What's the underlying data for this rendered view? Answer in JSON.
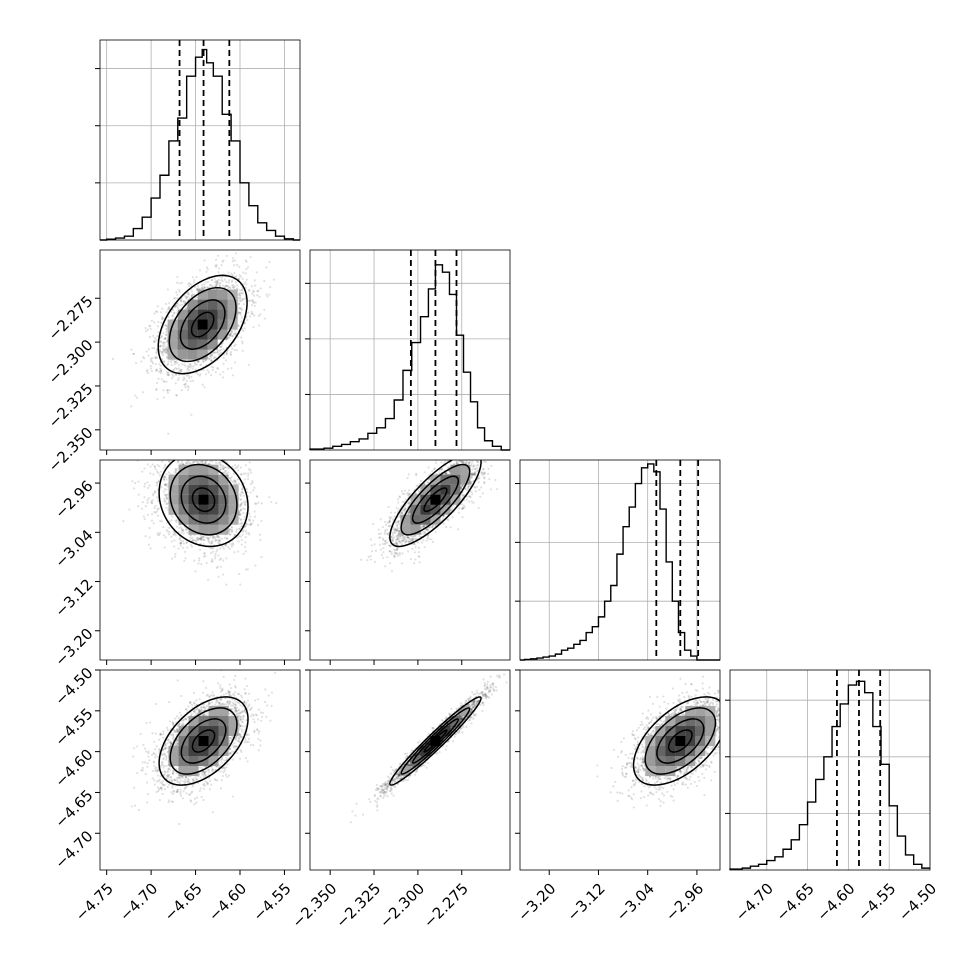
{
  "chart_data": {
    "type": "scatter",
    "subtype": "corner",
    "grid": true,
    "colors": {
      "frame": "#000000",
      "grid": "#b0b0b0",
      "points": "#000000"
    },
    "params": [
      {
        "range": [
          -4.7575,
          -4.5325
        ],
        "ticks": [
          -4.75,
          -4.7,
          -4.65,
          -4.6,
          -4.55
        ],
        "tick_labels": [
          "−4.75",
          "−4.70",
          "−4.65",
          "−4.60",
          "−4.55"
        ],
        "quantiles": [
          -4.668,
          -4.641,
          -4.612
        ],
        "hist_ymax": 1.05,
        "hist_bins": [
          [
            -4.755,
            0
          ],
          [
            -4.745,
            0.004
          ],
          [
            -4.735,
            0.01
          ],
          [
            -4.725,
            0.02
          ],
          [
            -4.715,
            0.06
          ],
          [
            -4.705,
            0.12
          ],
          [
            -4.695,
            0.22
          ],
          [
            -4.685,
            0.34
          ],
          [
            -4.675,
            0.52
          ],
          [
            -4.665,
            0.64
          ],
          [
            -4.655,
            0.86
          ],
          [
            -4.645,
            0.96
          ],
          [
            -4.64,
            1.0
          ],
          [
            -4.635,
            0.93
          ],
          [
            -4.625,
            0.86
          ],
          [
            -4.615,
            0.66
          ],
          [
            -4.605,
            0.52
          ],
          [
            -4.595,
            0.3
          ],
          [
            -4.585,
            0.18
          ],
          [
            -4.575,
            0.09
          ],
          [
            -4.565,
            0.05
          ],
          [
            -4.555,
            0.02
          ],
          [
            -4.545,
            0.006
          ],
          [
            -4.535,
            0
          ]
        ]
      },
      {
        "range": [
          -2.3615,
          -2.2475
        ],
        "ticks": [
          -2.35,
          -2.325,
          -2.3,
          -2.275
        ],
        "tick_labels": [
          "−2.350",
          "−2.325",
          "−2.300",
          "−2.275"
        ],
        "quantiles": [
          -2.304,
          -2.29,
          -2.278
        ],
        "hist_ymax": 1.08,
        "hist_bins": [
          [
            -2.356,
            0.005
          ],
          [
            -2.351,
            0.01
          ],
          [
            -2.346,
            0.02
          ],
          [
            -2.341,
            0.03
          ],
          [
            -2.336,
            0.045
          ],
          [
            -2.331,
            0.06
          ],
          [
            -2.326,
            0.09
          ],
          [
            -2.321,
            0.12
          ],
          [
            -2.316,
            0.17
          ],
          [
            -2.311,
            0.27
          ],
          [
            -2.306,
            0.43
          ],
          [
            -2.301,
            0.58
          ],
          [
            -2.296,
            0.72
          ],
          [
            -2.292,
            0.87
          ],
          [
            -2.288,
            1.0
          ],
          [
            -2.284,
            0.96
          ],
          [
            -2.28,
            0.84
          ],
          [
            -2.276,
            0.62
          ],
          [
            -2.272,
            0.42
          ],
          [
            -2.268,
            0.26
          ],
          [
            -2.264,
            0.12
          ],
          [
            -2.26,
            0.05
          ],
          [
            -2.255,
            0.02
          ],
          [
            -2.25,
            0
          ]
        ]
      },
      {
        "range": [
          -3.2475,
          -2.9225
        ],
        "ticks": [
          -3.2,
          -3.12,
          -3.04,
          -2.96
        ],
        "tick_labels": [
          "−3.20",
          "−3.12",
          "−3.04",
          "−2.96"
        ],
        "quantiles": [
          -3.026,
          -2.987,
          -2.958
        ],
        "hist_ymax": 1.02,
        "hist_bins": [
          [
            -3.245,
            0
          ],
          [
            -3.235,
            0.003
          ],
          [
            -3.225,
            0.006
          ],
          [
            -3.215,
            0.01
          ],
          [
            -3.205,
            0.015
          ],
          [
            -3.195,
            0.02
          ],
          [
            -3.185,
            0.03
          ],
          [
            -3.175,
            0.05
          ],
          [
            -3.165,
            0.06
          ],
          [
            -3.155,
            0.08
          ],
          [
            -3.145,
            0.1
          ],
          [
            -3.135,
            0.14
          ],
          [
            -3.125,
            0.17
          ],
          [
            -3.115,
            0.22
          ],
          [
            -3.105,
            0.3
          ],
          [
            -3.095,
            0.38
          ],
          [
            -3.085,
            0.54
          ],
          [
            -3.075,
            0.68
          ],
          [
            -3.065,
            0.78
          ],
          [
            -3.055,
            0.9
          ],
          [
            -3.045,
            0.98
          ],
          [
            -3.035,
            1.0
          ],
          [
            -3.025,
            0.96
          ],
          [
            -3.015,
            0.77
          ],
          [
            -3.005,
            0.5
          ],
          [
            -2.995,
            0.3
          ],
          [
            -2.985,
            0.14
          ],
          [
            -2.975,
            0.05
          ],
          [
            -2.965,
            0.02
          ],
          [
            -2.955,
            0
          ],
          [
            -2.945,
            0
          ],
          [
            -2.935,
            0
          ],
          [
            -2.925,
            0
          ]
        ]
      },
      {
        "range": [
          -4.745,
          -4.5
        ],
        "ticks": [
          -4.7,
          -4.65,
          -4.6,
          -4.55,
          -4.5
        ],
        "tick_labels": [
          "−4.70",
          "−4.65",
          "−4.60",
          "−4.55",
          "−4.50"
        ],
        "quantiles": [
          -4.614,
          -4.587,
          -4.561
        ],
        "hist_ymax": 1.06,
        "hist_bins": [
          [
            -4.735,
            0.005
          ],
          [
            -4.725,
            0.01
          ],
          [
            -4.715,
            0.02
          ],
          [
            -4.705,
            0.03
          ],
          [
            -4.695,
            0.05
          ],
          [
            -4.685,
            0.07
          ],
          [
            -4.675,
            0.11
          ],
          [
            -4.665,
            0.16
          ],
          [
            -4.655,
            0.24
          ],
          [
            -4.645,
            0.36
          ],
          [
            -4.635,
            0.48
          ],
          [
            -4.625,
            0.6
          ],
          [
            -4.615,
            0.76
          ],
          [
            -4.605,
            0.88
          ],
          [
            -4.595,
            0.98
          ],
          [
            -4.585,
            1.0
          ],
          [
            -4.575,
            0.94
          ],
          [
            -4.565,
            0.76
          ],
          [
            -4.555,
            0.56
          ],
          [
            -4.545,
            0.34
          ],
          [
            -4.535,
            0.18
          ],
          [
            -4.525,
            0.08
          ],
          [
            -4.515,
            0.03
          ],
          [
            -4.505,
            0.01
          ]
        ]
      }
    ],
    "pairs": [
      {
        "row": 1,
        "col": 0,
        "center": [
          -4.642,
          -2.29
        ],
        "sigma": [
          0.025,
          0.014
        ],
        "corr": 0.45,
        "points": 2500
      },
      {
        "row": 2,
        "col": 0,
        "center": [
          -4.641,
          -2.987
        ],
        "sigma": [
          0.025,
          0.038
        ],
        "corr": -0.15,
        "points": 2500
      },
      {
        "row": 2,
        "col": 1,
        "center": [
          -2.29,
          -2.987
        ],
        "sigma": [
          0.013,
          0.038
        ],
        "corr": 0.8,
        "points": 2500
      },
      {
        "row": 3,
        "col": 0,
        "center": [
          -4.641,
          -4.587
        ],
        "sigma": [
          0.025,
          0.027
        ],
        "corr": 0.5,
        "points": 2500
      },
      {
        "row": 3,
        "col": 1,
        "center": [
          -2.29,
          -4.587
        ],
        "sigma": [
          0.013,
          0.027
        ],
        "corr": 0.97,
        "points": 2500
      },
      {
        "row": 3,
        "col": 2,
        "center": [
          -2.987,
          -4.587
        ],
        "sigma": [
          0.038,
          0.027
        ],
        "corr": 0.55,
        "points": 2500
      }
    ]
  }
}
